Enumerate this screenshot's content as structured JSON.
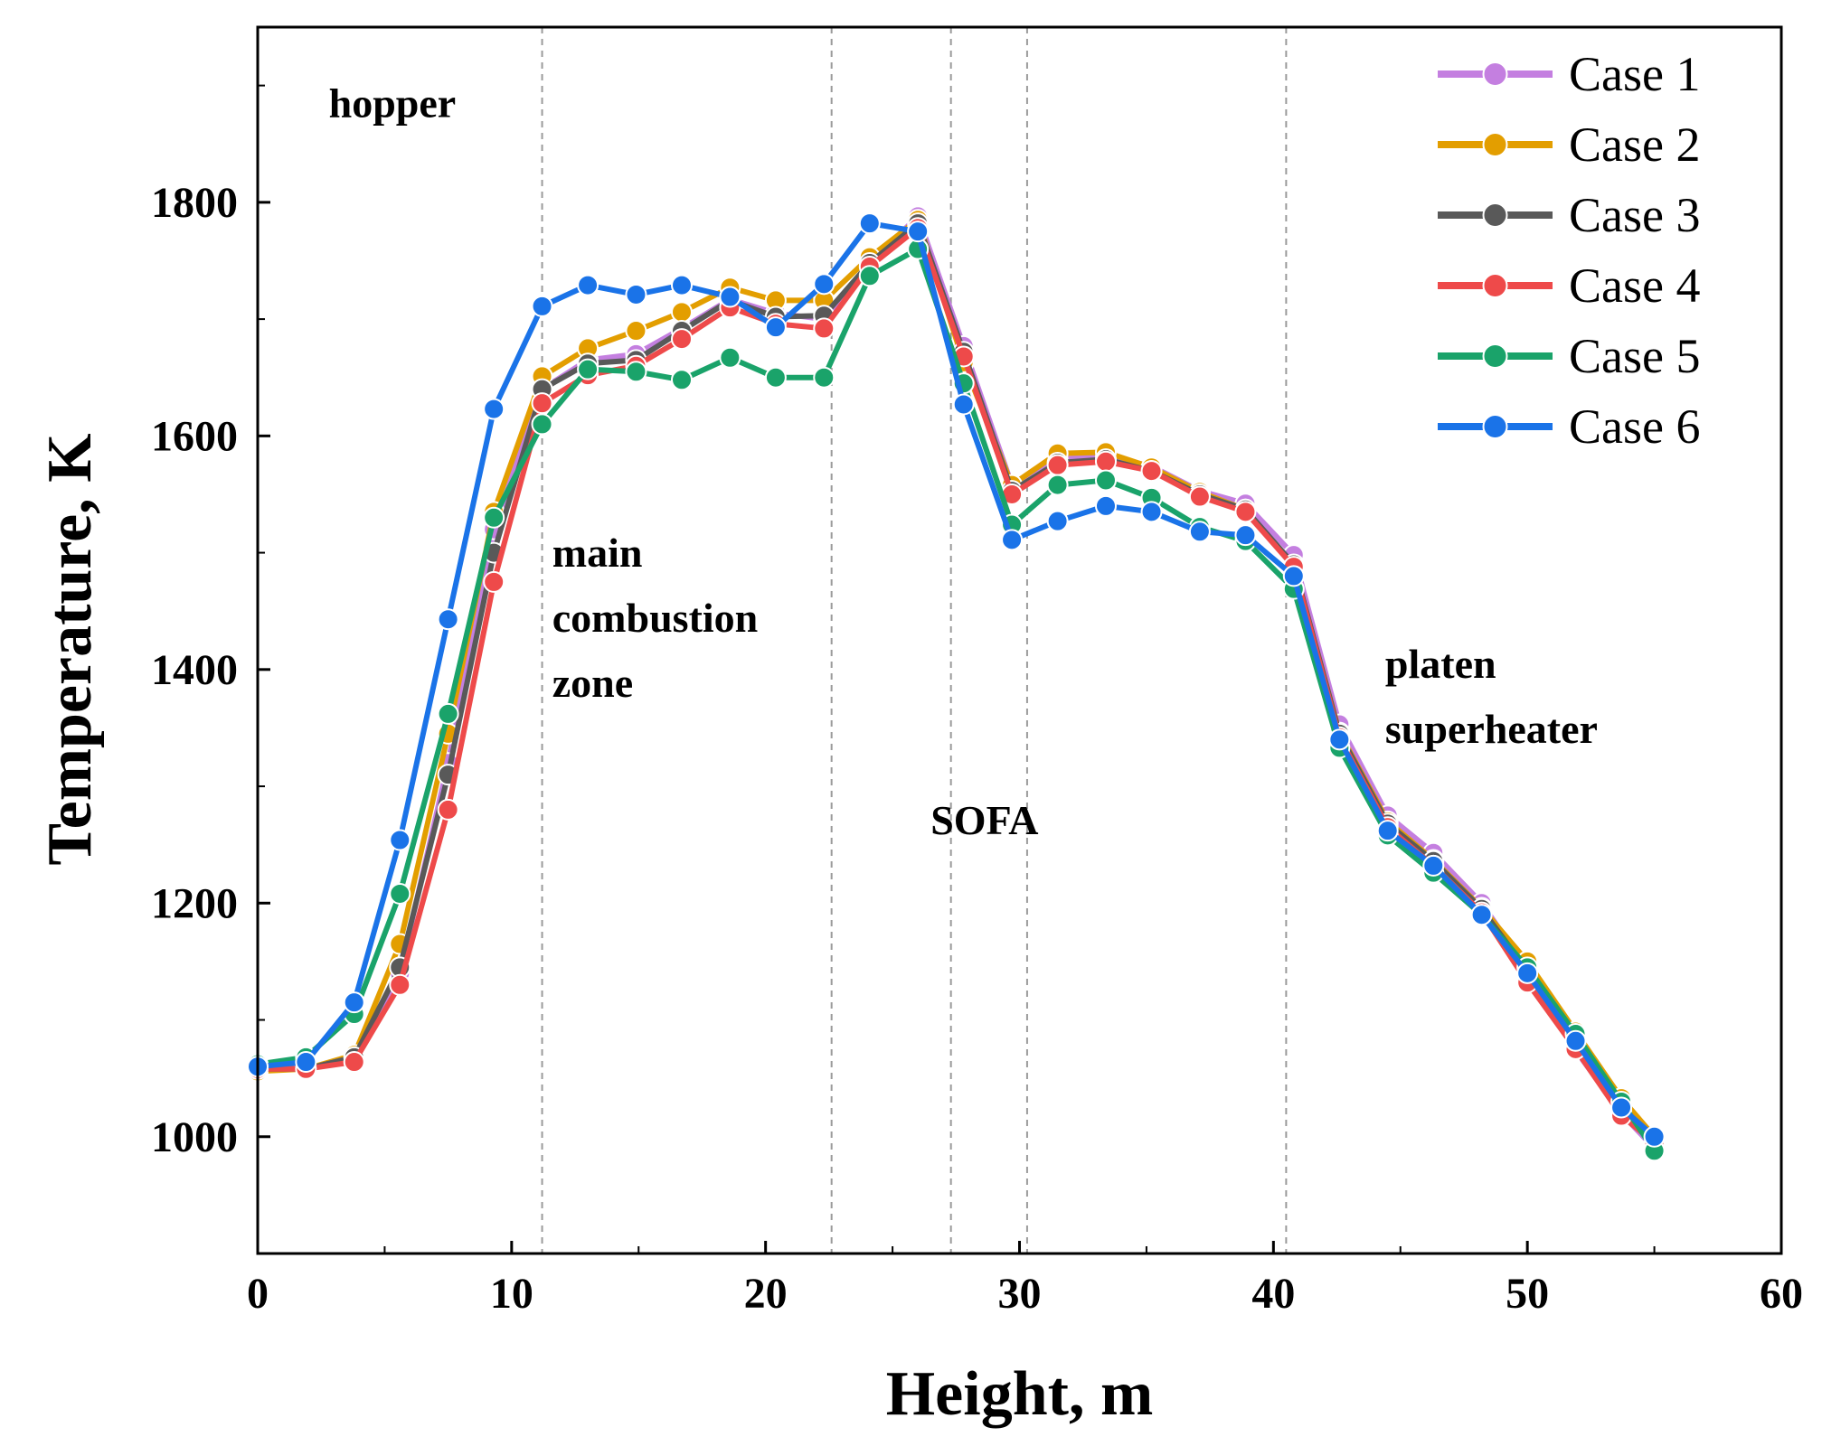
{
  "chart_data": {
    "type": "line",
    "title": "",
    "xlabel": "Height, m",
    "ylabel": "Temperature, K",
    "xlim": [
      0,
      60
    ],
    "ylim": [
      900,
      1950
    ],
    "xticks": [
      0,
      10,
      20,
      30,
      40,
      50,
      60
    ],
    "yticks": [
      1000,
      1200,
      1400,
      1600,
      1800
    ],
    "xtick_labels": [
      "0",
      "10",
      "20",
      "30",
      "40",
      "50",
      "60"
    ],
    "ytick_labels": [
      "1000",
      "1200",
      "1400",
      "1600",
      "1800"
    ],
    "grid": false,
    "legend_position": "top-right",
    "zone_boundaries": [
      11.2,
      22.6,
      27.3,
      30.3,
      40.5
    ],
    "annotations": [
      {
        "id": "hopper",
        "lines": [
          "hopper"
        ],
        "x": 2.8,
        "y": 1873
      },
      {
        "id": "main-combustion-zone",
        "lines": [
          "main",
          "combustion",
          "zone"
        ],
        "x": 11.6,
        "y": 1488
      },
      {
        "id": "sofa",
        "lines": [
          "SOFA"
        ],
        "x": 26.5,
        "y": 1259
      },
      {
        "id": "platen-superheater",
        "lines": [
          "platen",
          "superheater"
        ],
        "x": 44.4,
        "y": 1393
      }
    ],
    "x": [
      0,
      1.9,
      3.8,
      5.6,
      7.5,
      9.3,
      11.2,
      13.0,
      14.9,
      16.7,
      18.6,
      20.4,
      22.3,
      24.1,
      26.0,
      27.8,
      29.7,
      31.5,
      33.4,
      35.2,
      37.1,
      38.9,
      40.8,
      42.6,
      44.5,
      46.3,
      48.2,
      50.0,
      51.9,
      53.7,
      55.0
    ],
    "series": [
      {
        "name": "Case 1",
        "color": "#c47fe0",
        "values": [
          1060,
          1058,
          1066,
          1140,
          1320,
          1520,
          1640,
          1665,
          1670,
          1692,
          1717,
          1705,
          1700,
          1748,
          1788,
          1677,
          1558,
          1580,
          1583,
          1574,
          1553,
          1542,
          1498,
          1353,
          1275,
          1243,
          1200,
          1143,
          1074,
          1020,
          990
        ]
      },
      {
        "name": "Case 2",
        "color": "#e39e00",
        "values": [
          1056,
          1058,
          1070,
          1165,
          1345,
          1535,
          1651,
          1675,
          1690,
          1706,
          1727,
          1716,
          1716,
          1753,
          1785,
          1663,
          1558,
          1585,
          1586,
          1573,
          1552,
          1537,
          1489,
          1346,
          1270,
          1237,
          1196,
          1150,
          1090,
          1033,
          1000
        ]
      },
      {
        "name": "Case 3",
        "color": "#595959",
        "values": [
          1058,
          1058,
          1068,
          1145,
          1310,
          1500,
          1640,
          1662,
          1665,
          1690,
          1716,
          1702,
          1703,
          1748,
          1782,
          1672,
          1553,
          1577,
          1580,
          1570,
          1550,
          1537,
          1490,
          1345,
          1268,
          1236,
          1195,
          1142,
          1078,
          1022,
          993
        ]
      },
      {
        "name": "Case 4",
        "color": "#ee4a4a",
        "values": [
          1058,
          1058,
          1064,
          1130,
          1280,
          1475,
          1628,
          1652,
          1660,
          1683,
          1710,
          1696,
          1692,
          1745,
          1778,
          1668,
          1550,
          1575,
          1578,
          1570,
          1548,
          1535,
          1488,
          1342,
          1265,
          1232,
          1192,
          1132,
          1075,
          1018,
          995
        ]
      },
      {
        "name": "Case 5",
        "color": "#1aa36a",
        "values": [
          1062,
          1068,
          1105,
          1208,
          1362,
          1530,
          1610,
          1657,
          1655,
          1648,
          1667,
          1650,
          1650,
          1737,
          1760,
          1645,
          1524,
          1558,
          1562,
          1547,
          1522,
          1510,
          1469,
          1333,
          1258,
          1226,
          1190,
          1145,
          1088,
          1030,
          988
        ]
      },
      {
        "name": "Case 6",
        "color": "#1a73e8",
        "values": [
          1060,
          1064,
          1115,
          1254,
          1443,
          1623,
          1711,
          1729,
          1721,
          1729,
          1719,
          1693,
          1730,
          1782,
          1775,
          1627,
          1511,
          1527,
          1540,
          1535,
          1518,
          1515,
          1480,
          1340,
          1262,
          1232,
          1190,
          1140,
          1082,
          1025,
          1000
        ]
      }
    ]
  }
}
